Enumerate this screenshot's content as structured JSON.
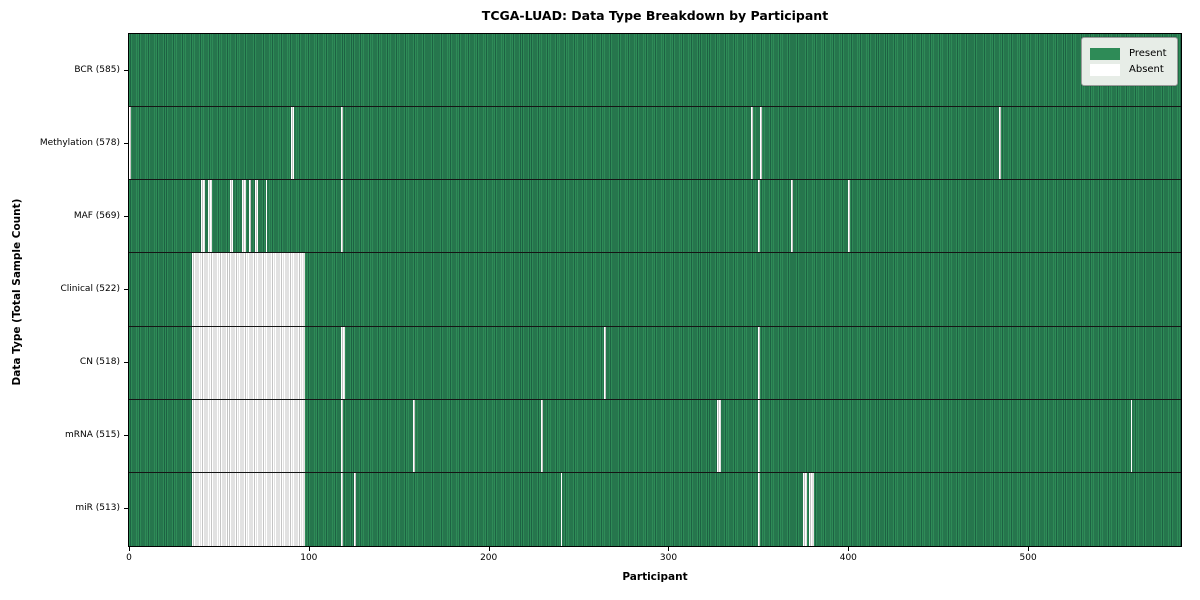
{
  "chart_data": {
    "type": "heatmap",
    "title": "TCGA-LUAD: Data Type Breakdown by Participant",
    "xlabel": "Participant",
    "ylabel": "Data Type (Total Sample Count)",
    "x_ticks": [
      0,
      100,
      200,
      300,
      400,
      500
    ],
    "n_participants": 585,
    "grid": false,
    "legend_position": "upper right",
    "legend": [
      {
        "label": "Present",
        "color": "#2e8b57"
      },
      {
        "label": "Absent",
        "color": "#ffffff"
      }
    ],
    "rows": [
      {
        "label": "BCR (585)",
        "data_type": "BCR",
        "sample_count": 585,
        "absent_runs": []
      },
      {
        "label": "Methylation (578)",
        "data_type": "Methylation",
        "sample_count": 578,
        "absent_runs": [
          [
            0,
            1
          ],
          [
            90,
            2
          ],
          [
            118,
            1
          ],
          [
            346,
            1
          ],
          [
            351,
            1
          ],
          [
            484,
            1
          ]
        ]
      },
      {
        "label": "MAF (569)",
        "data_type": "MAF",
        "sample_count": 569,
        "absent_runs": [
          [
            40,
            2
          ],
          [
            44,
            2
          ],
          [
            56,
            2
          ],
          [
            63,
            2
          ],
          [
            67,
            1
          ],
          [
            70,
            2
          ],
          [
            76,
            1
          ],
          [
            118,
            1
          ],
          [
            350,
            1
          ],
          [
            368,
            1
          ],
          [
            400,
            1
          ]
        ]
      },
      {
        "label": "Clinical (522)",
        "data_type": "Clinical",
        "sample_count": 522,
        "absent_runs": [
          [
            35,
            63
          ]
        ]
      },
      {
        "label": "CN (518)",
        "data_type": "CN",
        "sample_count": 518,
        "absent_runs": [
          [
            35,
            63
          ],
          [
            118,
            2
          ],
          [
            264,
            1
          ],
          [
            350,
            1
          ]
        ]
      },
      {
        "label": "mRNA (515)",
        "data_type": "mRNA",
        "sample_count": 515,
        "absent_runs": [
          [
            35,
            63
          ],
          [
            118,
            1
          ],
          [
            158,
            1
          ],
          [
            229,
            1
          ],
          [
            327,
            2
          ],
          [
            350,
            1
          ],
          [
            557,
            1
          ]
        ]
      },
      {
        "label": "miR (513)",
        "data_type": "miR",
        "sample_count": 513,
        "absent_runs": [
          [
            35,
            63
          ],
          [
            118,
            1
          ],
          [
            125,
            1
          ],
          [
            240,
            1
          ],
          [
            350,
            1
          ],
          [
            375,
            2
          ],
          [
            378,
            3
          ]
        ]
      }
    ]
  },
  "colors": {
    "present": "#2e8b57",
    "present_edge": "#1d6243",
    "absent": "#ffffff",
    "absent_edge": "#c4c4c4",
    "row_divider": "#151515",
    "plot_border": "#000000",
    "legend_bg": "#e7ede7",
    "legend_border": "#9a9a9a",
    "text": "#000000"
  }
}
